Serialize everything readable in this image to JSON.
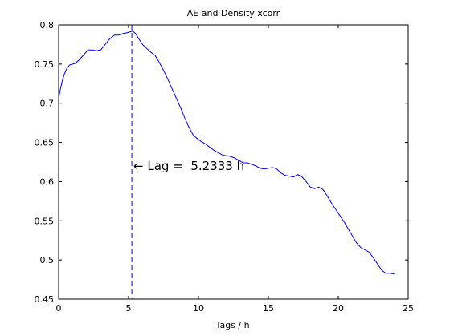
{
  "chart_data": {
    "type": "line",
    "title": "AE and Density xcorr",
    "xlabel": "lags / h",
    "ylabel": "",
    "xlim": [
      0,
      25
    ],
    "ylim": [
      0.45,
      0.8
    ],
    "x_ticks": [
      "0",
      "5",
      "10",
      "15",
      "20",
      "25"
    ],
    "y_ticks": [
      "0.45",
      "0.5",
      "0.55",
      "0.6",
      "0.65",
      "0.7",
      "0.75",
      "0.8"
    ],
    "grid": false,
    "series": [
      {
        "color": "#0000ff",
        "x": [
          0,
          0.1,
          0.25,
          0.4,
          0.6,
          0.8,
          1.0,
          1.2,
          1.5,
          1.8,
          2.1,
          2.4,
          2.7,
          3.0,
          3.2,
          3.5,
          3.7,
          4.0,
          4.3,
          4.6,
          4.9,
          5.1,
          5.3,
          5.5,
          5.7,
          6.0,
          6.3,
          6.6,
          6.9,
          7.2,
          7.5,
          7.8,
          8.1,
          8.4,
          8.7,
          9.0,
          9.3,
          9.6,
          9.9,
          10.2,
          10.5,
          10.8,
          11.1,
          11.4,
          11.7,
          12.0,
          12.3,
          12.6,
          12.9,
          13.2,
          13.5,
          13.8,
          14.1,
          14.4,
          14.7,
          15.0,
          15.3,
          15.6,
          15.9,
          16.2,
          16.5,
          16.8,
          17.1,
          17.4,
          17.7,
          18.0,
          18.3,
          18.6,
          18.9,
          19.2,
          19.5,
          19.8,
          20.1,
          20.4,
          20.7,
          21.0,
          21.3,
          21.6,
          21.9,
          22.2,
          22.5,
          22.8,
          23.1,
          23.4,
          23.7,
          24.0
        ],
        "y": [
          0.706,
          0.716,
          0.728,
          0.737,
          0.745,
          0.749,
          0.75,
          0.751,
          0.756,
          0.762,
          0.768,
          0.768,
          0.767,
          0.768,
          0.772,
          0.779,
          0.783,
          0.787,
          0.787,
          0.789,
          0.79,
          0.791,
          0.792,
          0.789,
          0.783,
          0.775,
          0.77,
          0.765,
          0.761,
          0.752,
          0.742,
          0.731,
          0.719,
          0.707,
          0.695,
          0.682,
          0.67,
          0.66,
          0.655,
          0.651,
          0.648,
          0.644,
          0.64,
          0.637,
          0.634,
          0.633,
          0.632,
          0.63,
          0.627,
          0.624,
          0.624,
          0.622,
          0.62,
          0.617,
          0.616,
          0.617,
          0.618,
          0.616,
          0.611,
          0.608,
          0.607,
          0.606,
          0.609,
          0.606,
          0.6,
          0.593,
          0.591,
          0.593,
          0.59,
          0.582,
          0.573,
          0.565,
          0.557,
          0.549,
          0.54,
          0.531,
          0.522,
          0.516,
          0.513,
          0.51,
          0.503,
          0.495,
          0.487,
          0.483,
          0.483,
          0.482
        ]
      }
    ],
    "vline": {
      "x": 5.2333,
      "style": "dashed",
      "color": "#0000ff"
    },
    "annotation": {
      "text": "Lag =  5.2333 h",
      "arrow": "←",
      "x": 5.2333,
      "y": 0.62
    }
  }
}
